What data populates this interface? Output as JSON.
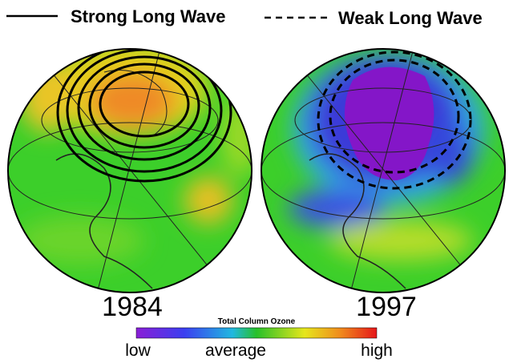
{
  "legend": [
    {
      "label": "Strong Long Wave",
      "style": "solid"
    },
    {
      "label": "Weak Long Wave",
      "style": "dashed"
    }
  ],
  "panels": [
    {
      "year": "1984"
    },
    {
      "year": "1997"
    }
  ],
  "colorbar": {
    "title": "Total Column Ozone",
    "labels": [
      "low",
      "average",
      "high"
    ]
  }
}
